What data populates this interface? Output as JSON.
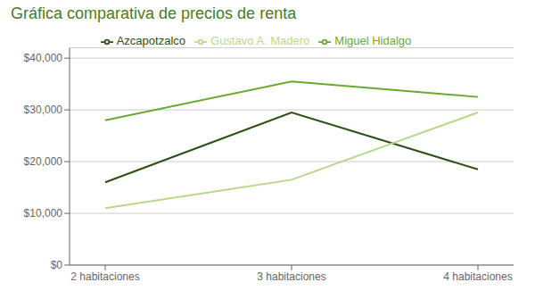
{
  "chart_data": {
    "type": "line",
    "title": "Gráfica comparativa de precios de renta",
    "title_color": "#4a7c20",
    "categories": [
      "2 habitaciones",
      "3 habitaciones",
      "4 habitaciones"
    ],
    "series": [
      {
        "name": "Azcapotzalco",
        "color": "#2d5016",
        "values": [
          16000,
          29500,
          18500
        ]
      },
      {
        "name": "Gustavo A. Madero",
        "color": "#b8d88a",
        "values": [
          11000,
          16500,
          29500
        ]
      },
      {
        "name": "Miguel Hidalgo",
        "color": "#6aaa30",
        "values": [
          28000,
          35500,
          32500
        ]
      }
    ],
    "ylim": [
      0,
      42000
    ],
    "yticks": [
      {
        "value": 0,
        "label": "$0"
      },
      {
        "value": 10000,
        "label": "$10,000"
      },
      {
        "value": 20000,
        "label": "$20,000"
      },
      {
        "value": 30000,
        "label": "$30,000"
      },
      {
        "value": 40000,
        "label": "$40,000"
      }
    ],
    "grid": true,
    "legend": "top"
  }
}
